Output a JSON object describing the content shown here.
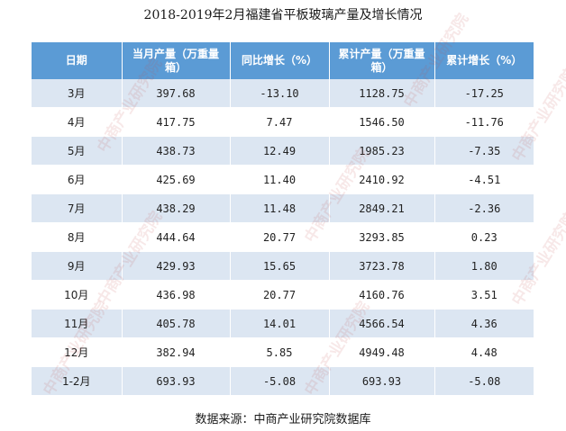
{
  "title": "2018-2019年2月福建省平板玻璃产量及增长情况",
  "columns": [
    "日期",
    "当月产量（万重量箱）",
    "同比增长（%）",
    "累计产量（万重量箱）",
    "累计增长（%）"
  ],
  "rows": [
    [
      "3月",
      "397.68",
      "-13.10",
      "1128.75",
      "-17.25"
    ],
    [
      "4月",
      "417.75",
      "7.47",
      "1546.50",
      "-11.76"
    ],
    [
      "5月",
      "438.73",
      "12.49",
      "1985.23",
      "-7.35"
    ],
    [
      "6月",
      "425.69",
      "11.40",
      "2410.92",
      "-4.51"
    ],
    [
      "7月",
      "438.29",
      "11.48",
      "2849.21",
      "-2.36"
    ],
    [
      "8月",
      "444.64",
      "20.77",
      "3293.85",
      "0.23"
    ],
    [
      "9月",
      "429.93",
      "15.65",
      "3723.78",
      "1.80"
    ],
    [
      "10月",
      "436.98",
      "20.77",
      "4160.76",
      "3.51"
    ],
    [
      "11月",
      "405.78",
      "14.01",
      "4566.54",
      "4.36"
    ],
    [
      "12月",
      "382.94",
      "5.85",
      "4949.48",
      "4.48"
    ],
    [
      "1-2月",
      "693.93",
      "-5.08",
      "693.93",
      "-5.08"
    ]
  ],
  "source": "数据来源：中商产业研究院数据库",
  "watermark": "中商产业研究院",
  "colors": {
    "header_bg": "#5b9bd5",
    "row_stripe": "#dce6f2"
  }
}
